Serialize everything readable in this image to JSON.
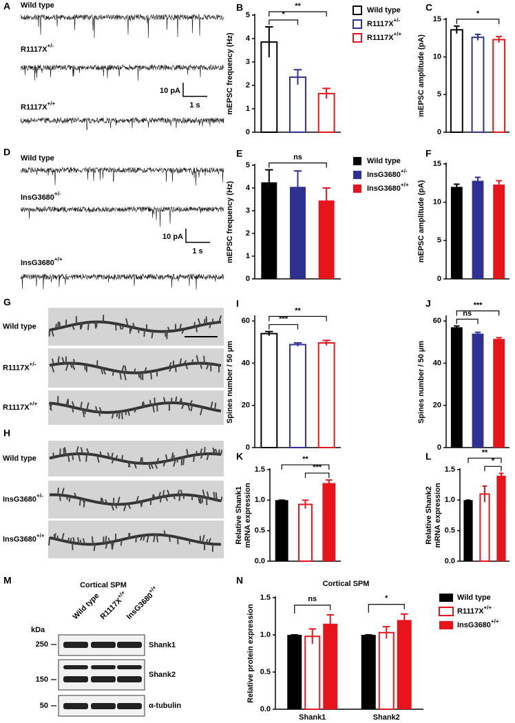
{
  "chart_data": [
    {
      "type": "bar",
      "label": "B",
      "ylabel": [
        "mEPSC frequency (Hz)"
      ],
      "ylim": [
        0,
        5
      ],
      "yticks": [
        0,
        1,
        2,
        3,
        4,
        5
      ],
      "categories": [
        "Wild type",
        "R1117X+/-",
        "R1117X+/+"
      ],
      "values": [
        3.85,
        2.35,
        1.65
      ],
      "errors": [
        0.65,
        0.32,
        0.22
      ],
      "colors": [
        "#000000",
        "#2e3192",
        "#e8141b"
      ],
      "filled": [
        false,
        false,
        false
      ],
      "legend": true,
      "annotations": [
        {
          "text": "*",
          "from": 0,
          "to": 1
        },
        {
          "text": "**",
          "from": 0,
          "to": 2
        }
      ]
    },
    {
      "type": "bar",
      "label": "C",
      "ylabel": [
        "mEPSC amplitude (pA)"
      ],
      "ylim": [
        0,
        15
      ],
      "yticks": [
        0,
        5,
        10,
        15
      ],
      "values": [
        13.6,
        12.6,
        12.3
      ],
      "errors": [
        0.5,
        0.4,
        0.4
      ],
      "colors": [
        "#000000",
        "#2e3192",
        "#e8141b"
      ],
      "filled": [
        false,
        false,
        false
      ],
      "annotations": [
        {
          "text": "*",
          "from": 0,
          "to": 2
        }
      ]
    },
    {
      "type": "bar",
      "label": "E",
      "ylabel": [
        "mEPSC frequency (Hz)"
      ],
      "ylim": [
        0,
        5
      ],
      "yticks": [
        0,
        1,
        2,
        3,
        4,
        5
      ],
      "categories": [
        "Wild type",
        "InsG3680+/-",
        "InsG3680+/+"
      ],
      "values": [
        4.25,
        4.05,
        3.45
      ],
      "errors": [
        0.55,
        0.7,
        0.55
      ],
      "colors": [
        "#000000",
        "#2e3192",
        "#e8141b"
      ],
      "filled": [
        true,
        true,
        true
      ],
      "legend": true,
      "annotations": [
        {
          "text": "ns",
          "from": 0,
          "to": 2
        }
      ]
    },
    {
      "type": "bar",
      "label": "F",
      "ylabel": [
        "mEPSC amplitude (pA)"
      ],
      "ylim": [
        0,
        15
      ],
      "yticks": [
        0,
        5,
        10,
        15
      ],
      "values": [
        12.0,
        12.8,
        12.3
      ],
      "errors": [
        0.35,
        0.45,
        0.5
      ],
      "colors": [
        "#000000",
        "#2e3192",
        "#e8141b"
      ],
      "filled": [
        true,
        true,
        true
      ],
      "annotations": []
    },
    {
      "type": "bar",
      "label": "I",
      "ylabel": [
        "Spines number / 50 µm"
      ],
      "ylim": [
        0,
        62
      ],
      "yticks": [
        0,
        20,
        40,
        60
      ],
      "values": [
        54,
        48.8,
        49.6
      ],
      "errors": [
        1.0,
        0.8,
        1.2
      ],
      "colors": [
        "#000000",
        "#2e3192",
        "#e8141b"
      ],
      "filled": [
        false,
        false,
        false
      ],
      "annotations": [
        {
          "text": "***",
          "from": 0,
          "to": 1
        },
        {
          "text": "**",
          "from": 0,
          "to": 2
        }
      ]
    },
    {
      "type": "bar",
      "label": "J",
      "ylabel": [
        "Spines number / 50 µm"
      ],
      "ylim": [
        0,
        62
      ],
      "yticks": [
        0,
        20,
        40,
        60
      ],
      "values": [
        57,
        54,
        51.5
      ],
      "errors": [
        0.6,
        0.6,
        0.6
      ],
      "colors": [
        "#000000",
        "#2e3192",
        "#e8141b"
      ],
      "filled": [
        true,
        true,
        true
      ],
      "annotations": [
        {
          "text": "ns",
          "from": 0,
          "to": 1
        },
        {
          "text": "***",
          "from": 0,
          "to": 2
        }
      ]
    },
    {
      "type": "bar",
      "label": "K",
      "ylabel": [
        "Relative Shank1",
        "mRNA expression"
      ],
      "ylim": [
        0,
        1.5
      ],
      "yticks": [
        {
          "value": 0,
          "label": "0.0"
        },
        {
          "value": 0.5,
          "label": "0.5"
        },
        {
          "value": 1,
          "label": "1.0"
        },
        {
          "value": 1.5,
          "label": "1.5"
        }
      ],
      "values": [
        1.0,
        0.93,
        1.28
      ],
      "errors": [
        0,
        0.07,
        0.05
      ],
      "colors": [
        "#000000",
        "#e8141b",
        "#e8141b"
      ],
      "filled": [
        true,
        false,
        true
      ],
      "annotations": [
        {
          "text": "***",
          "from": 1,
          "to": 2
        },
        {
          "text": "**",
          "from": 0,
          "to": 2
        }
      ]
    },
    {
      "type": "bar",
      "label": "L",
      "ylabel": [
        "Relative Shank2",
        "mRNA expression"
      ],
      "ylim": [
        0,
        1.5
      ],
      "yticks": [
        {
          "value": 0,
          "label": "0.0"
        },
        {
          "value": 0.5,
          "label": "0.5"
        },
        {
          "value": 1,
          "label": "1.0"
        },
        {
          "value": 1.5,
          "label": "1.5"
        }
      ],
      "values": [
        1.0,
        1.1,
        1.4
      ],
      "errors": [
        0,
        0.13,
        0.04
      ],
      "colors": [
        "#000000",
        "#e8141b",
        "#e8141b"
      ],
      "filled": [
        true,
        false,
        true
      ],
      "annotations": [
        {
          "text": "*",
          "from": 1,
          "to": 2
        },
        {
          "text": "**",
          "from": 0,
          "to": 2
        }
      ]
    },
    {
      "type": "grouped_bar",
      "label": "N",
      "title": "Cortical SPM",
      "ylabel": [
        "Relative protein expression"
      ],
      "ylim": [
        0,
        1.5
      ],
      "yticks": [
        {
          "value": 0,
          "label": "0.0"
        },
        {
          "value": 0.5,
          "label": "0.5"
        },
        {
          "value": 1,
          "label": "1.0"
        },
        {
          "value": 1.5,
          "label": "1.5"
        }
      ],
      "categories": [
        "Shank1",
        "Shank2"
      ],
      "legend": true,
      "series": [
        {
          "name": "Wild type",
          "color": "#000000",
          "filled": true,
          "values": [
            1.0,
            1.0
          ],
          "errors": [
            0,
            0
          ]
        },
        {
          "name": "R1117X+/+",
          "color": "#e8141b",
          "filled": false,
          "values": [
            0.98,
            1.03
          ],
          "errors": [
            0.1,
            0.08
          ]
        },
        {
          "name": "InsG3680+/+",
          "color": "#e8141b",
          "filled": true,
          "values": [
            1.15,
            1.2
          ],
          "errors": [
            0.12,
            0.08
          ]
        }
      ],
      "annotations": [
        {
          "text": "ns",
          "category": 0,
          "from": 0,
          "to": 2
        },
        {
          "text": "*",
          "category": 1,
          "from": 0,
          "to": 2
        }
      ]
    }
  ],
  "traces": [
    {
      "label": "A",
      "rows": [
        "Wild type",
        "R1117X+/-",
        "R1117X+/+"
      ],
      "scale": {
        "y": "10 pA",
        "x": "1 s"
      }
    },
    {
      "label": "D",
      "rows": [
        "Wild type",
        "InsG3680+/-",
        "InsG3680+/+"
      ],
      "scale": {
        "y": "10 pA",
        "x": "1 s"
      }
    }
  ],
  "images": [
    {
      "label": "G",
      "rows": [
        "Wild type",
        "R1117X+/-",
        "R1117X+/+"
      ]
    },
    {
      "label": "H",
      "rows": [
        "Wild type",
        "InsG3680+/-",
        "InsG3680+/+"
      ]
    }
  ],
  "blot": {
    "label": "M",
    "title": "Cortical SPM",
    "unit": "kDa",
    "lanes": [
      "Wild type",
      "R1117X+/+",
      "InsG3680+/+"
    ],
    "markers": [
      250,
      150,
      50
    ],
    "rows": [
      "Shank1",
      "Shank2",
      "α-tubulin"
    ]
  }
}
